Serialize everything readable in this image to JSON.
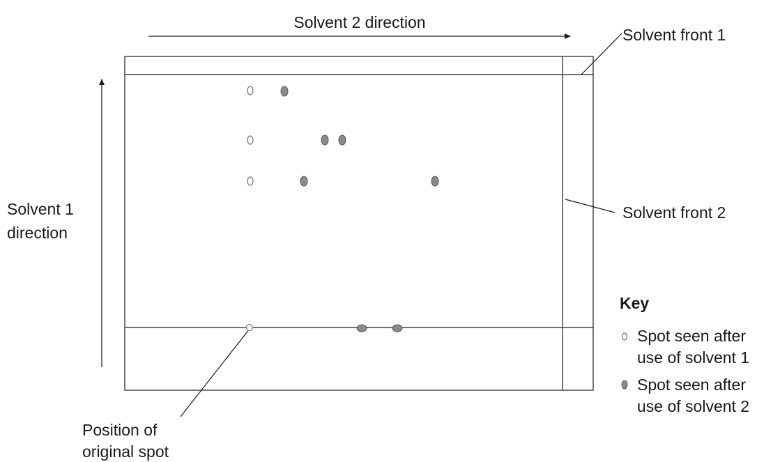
{
  "labels": {
    "solvent2_direction": "Solvent 2 direction",
    "solvent1_direction_line1": "Solvent 1",
    "solvent1_direction_line2": "direction",
    "solvent_front_1": "Solvent front 1",
    "solvent_front_2": "Solvent front 2",
    "original_spot_line1": "Position of",
    "original_spot_line2": "original spot"
  },
  "key": {
    "title": "Key",
    "solvent1_line1": "Spot seen after",
    "solvent1_line2": "use of solvent 1",
    "solvent2_line1": "Spot seen after",
    "solvent2_line2": "use of solvent 2"
  },
  "colors": {
    "line": "#1a1a1a",
    "spot_solvent1": "#ffffff",
    "spot_solvent2": "#8a8a8a"
  }
}
